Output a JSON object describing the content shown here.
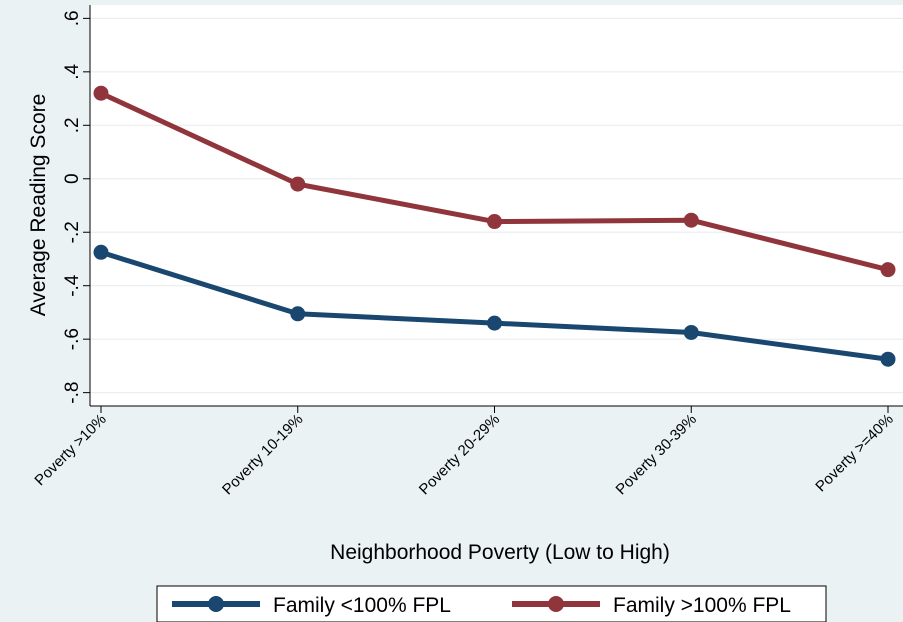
{
  "chart_data": {
    "type": "line",
    "title": "",
    "xlabel": "Neighborhood Poverty (Low to High)",
    "ylabel": "Average Reading Score",
    "categories": [
      "Poverty >10%",
      "Poverty 10-19%",
      "Poverty 20-29%",
      "Poverty 30-39%",
      "Poverty >=40%"
    ],
    "y_ticks": [
      -0.8,
      -0.6,
      -0.4,
      -0.2,
      0,
      0.2,
      0.4,
      0.6
    ],
    "y_tick_labels": [
      "-.8",
      "-.6",
      "-.4",
      "-.2",
      "0",
      ".2",
      ".4",
      ".6"
    ],
    "ylim": [
      -0.85,
      0.65
    ],
    "grid": true,
    "legend_position": "bottom",
    "series": [
      {
        "name": "Family <100% FPL",
        "color": "#1a476f",
        "values": [
          -0.275,
          -0.505,
          -0.54,
          -0.575,
          -0.675
        ]
      },
      {
        "name": "Family >100% FPL",
        "color": "#90353b",
        "values": [
          0.32,
          -0.02,
          -0.16,
          -0.155,
          -0.34
        ]
      }
    ]
  }
}
